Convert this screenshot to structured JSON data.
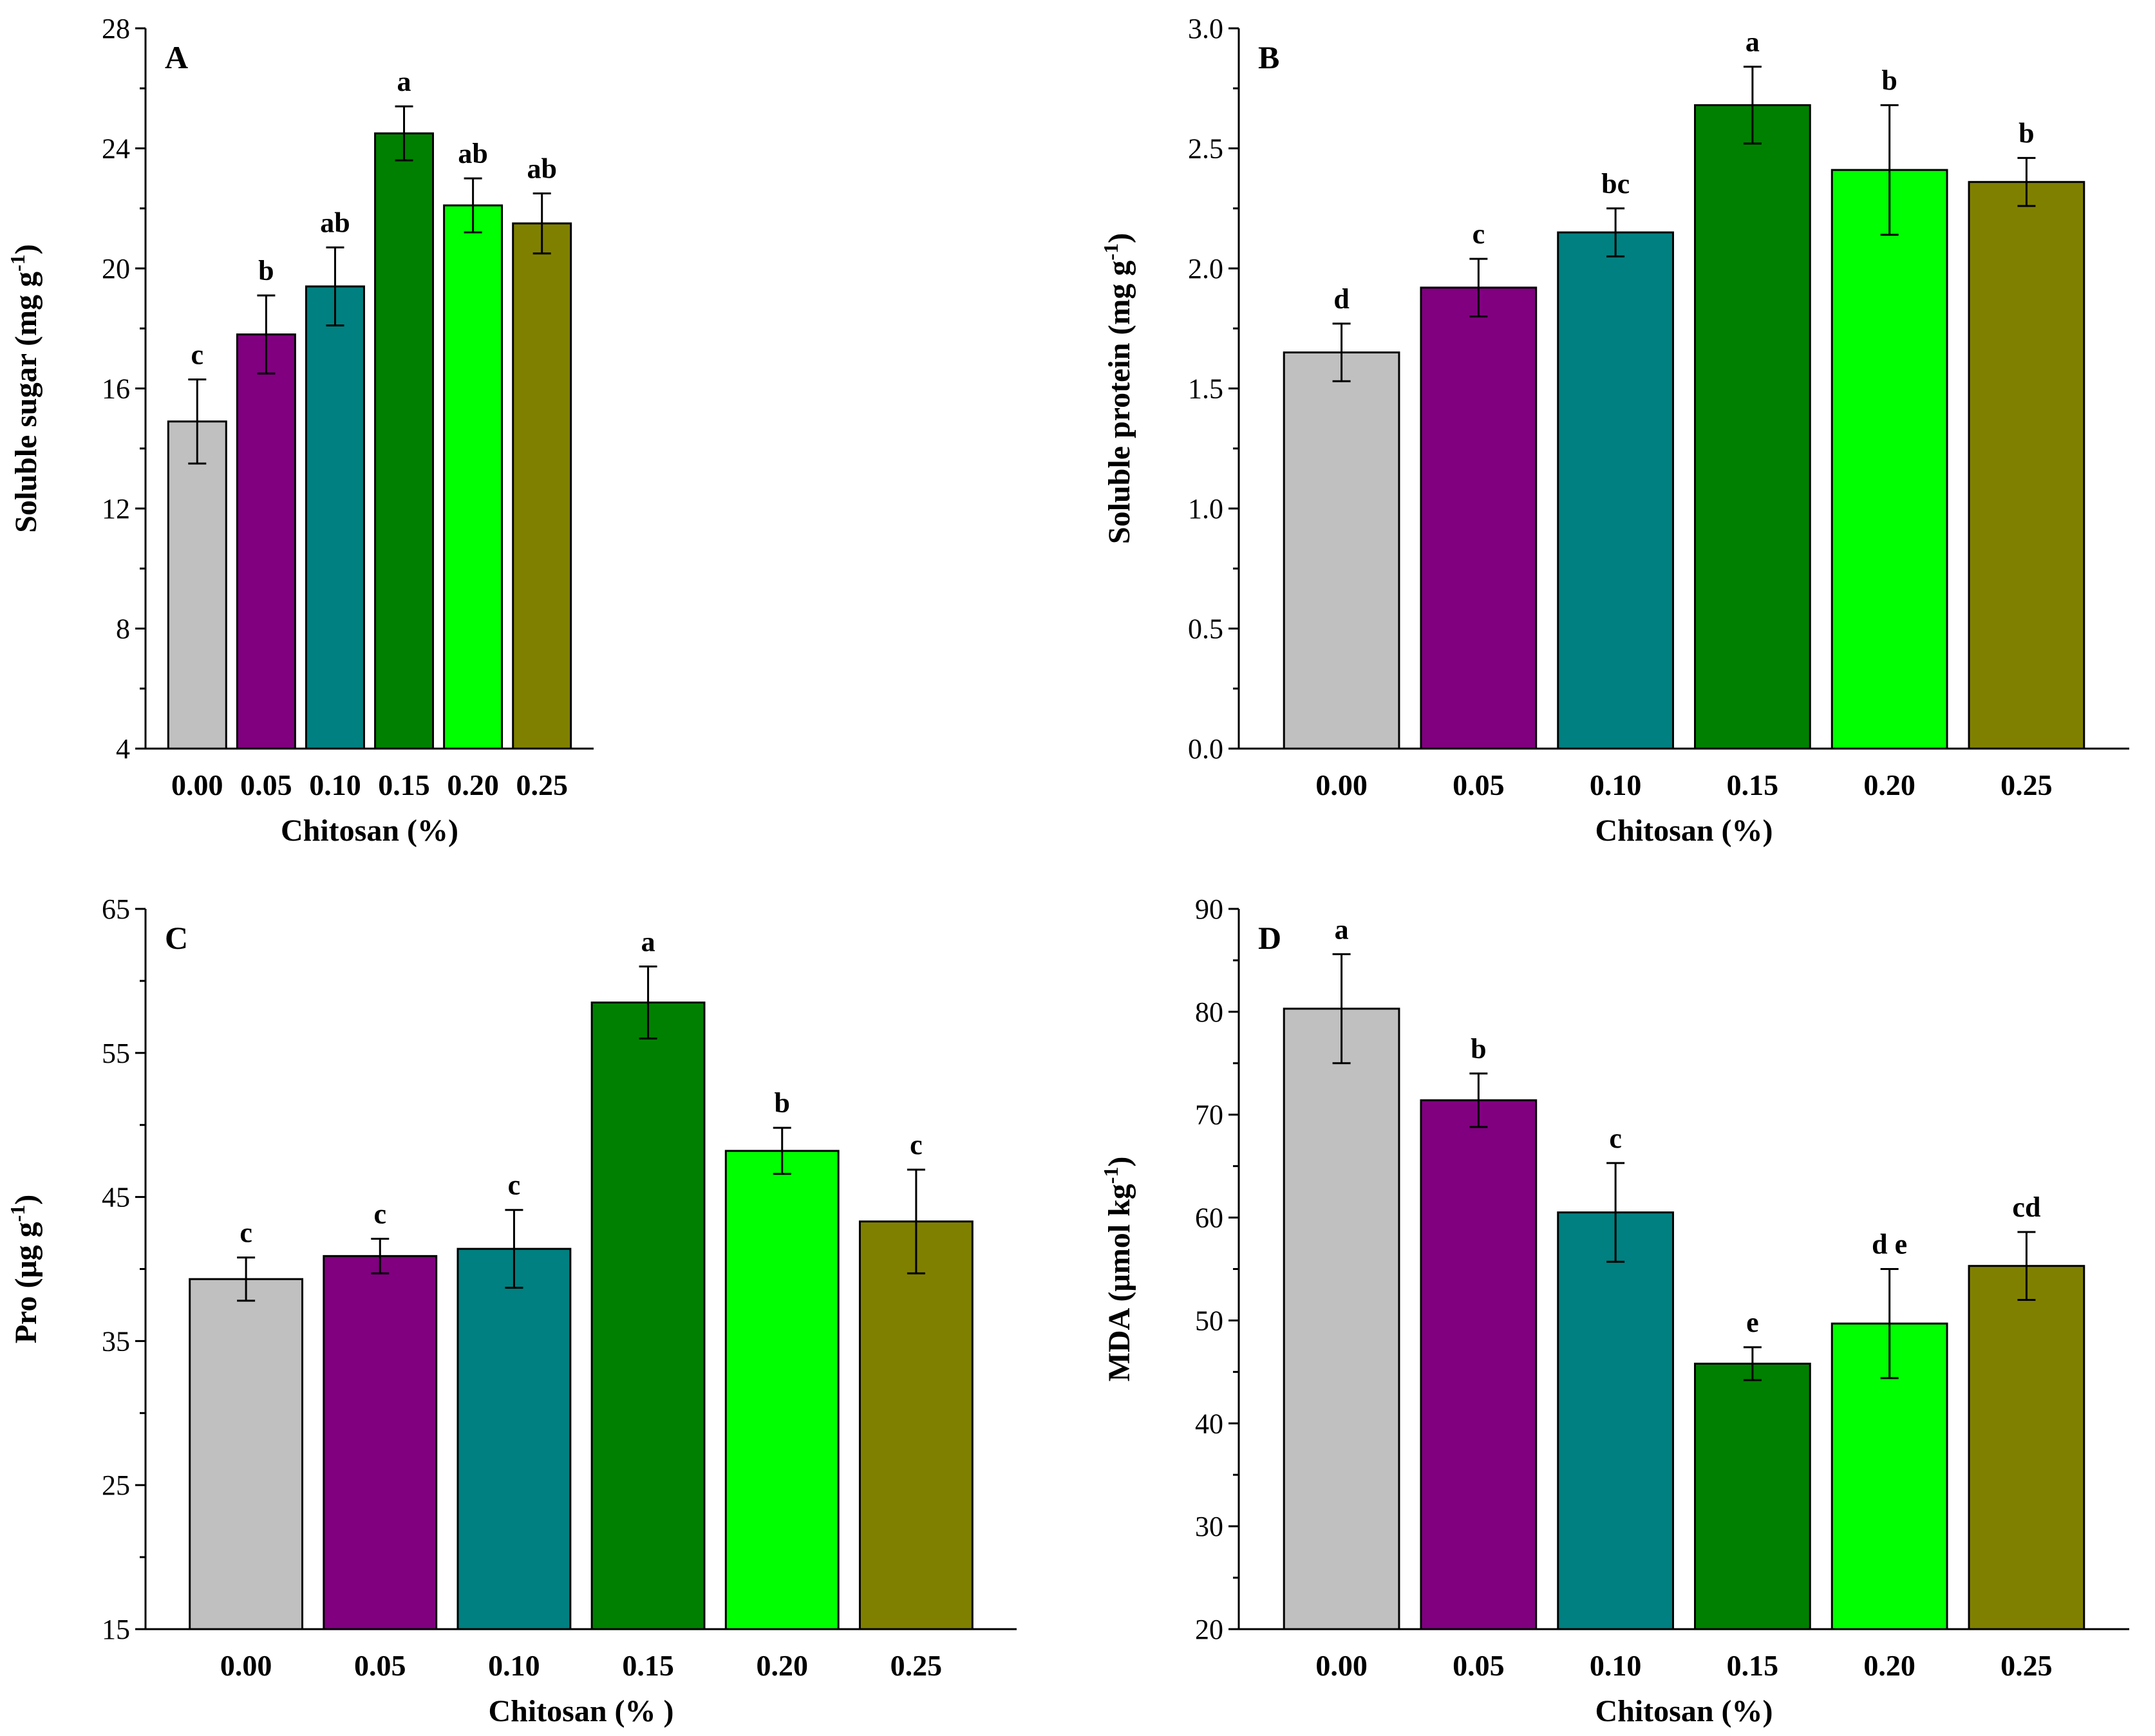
{
  "chart_data": [
    {
      "type": "bar",
      "panel": "A",
      "categories": [
        "0.00",
        "0.05",
        "0.10",
        "0.15",
        "0.20",
        "0.25"
      ],
      "values": [
        14.9,
        17.8,
        19.4,
        24.5,
        22.1,
        21.5
      ],
      "errors": [
        1.4,
        1.3,
        1.3,
        0.9,
        0.9,
        1.0
      ],
      "significance": [
        "c",
        "b",
        "ab",
        "a",
        "ab",
        "ab"
      ],
      "colors": [
        "#c0c0c0",
        "#800080",
        "#008080",
        "#008000",
        "#00ff00",
        "#808000"
      ],
      "xlabel": "Chitosan (%)",
      "ylabel": "Soluble sugar (mg g",
      "ylabel_sup": "-1",
      "ylabel_close": ")",
      "ylim": [
        4,
        28
      ],
      "yticks": [
        4,
        8,
        12,
        16,
        20,
        24,
        28
      ],
      "ytick_labels": [
        "4",
        "8",
        "12",
        "16",
        "20",
        "24",
        "28"
      ]
    },
    {
      "type": "bar",
      "panel": "B",
      "categories": [
        "0.00",
        "0.05",
        "0.10",
        "0.15",
        "0.20",
        "0.25"
      ],
      "values": [
        1.65,
        1.92,
        2.15,
        2.68,
        2.41,
        2.36
      ],
      "errors": [
        0.12,
        0.12,
        0.1,
        0.16,
        0.27,
        0.1
      ],
      "significance": [
        "d",
        "c",
        "bc",
        "a",
        "b",
        "b"
      ],
      "colors": [
        "#c0c0c0",
        "#800080",
        "#008080",
        "#008000",
        "#00ff00",
        "#808000"
      ],
      "xlabel": "Chitosan (%)",
      "ylabel": "Soluble protein (mg g",
      "ylabel_sup": "-1",
      "ylabel_close": ")",
      "ylim": [
        0,
        3
      ],
      "yticks": [
        0,
        0.5,
        1,
        1.5,
        2,
        2.5,
        3
      ],
      "ytick_labels": [
        "0.0",
        "0.5",
        "1.0",
        "1.5",
        "2.0",
        "2.5",
        "3.0"
      ]
    },
    {
      "type": "bar",
      "panel": "C",
      "categories": [
        "0.00",
        "0.05",
        "0.10",
        "0.15",
        "0.20",
        "0.25"
      ],
      "values": [
        39.3,
        40.9,
        41.4,
        58.5,
        48.2,
        43.3
      ],
      "errors": [
        1.5,
        1.2,
        2.7,
        2.5,
        1.6,
        3.6
      ],
      "significance": [
        "c",
        "c",
        "c",
        "a",
        "b",
        "c"
      ],
      "colors": [
        "#c0c0c0",
        "#800080",
        "#008080",
        "#008000",
        "#00ff00",
        "#808000"
      ],
      "xlabel": "Chitosan (% )",
      "ylabel": "Pro (μg g",
      "ylabel_sup": "-1",
      "ylabel_close": ")",
      "ylim": [
        15,
        65
      ],
      "yticks": [
        15,
        25,
        35,
        45,
        55,
        65
      ],
      "ytick_labels": [
        "15",
        "25",
        "35",
        "45",
        "55",
        "65"
      ]
    },
    {
      "type": "bar",
      "panel": "D",
      "categories": [
        "0.00",
        "0.05",
        "0.10",
        "0.15",
        "0.20",
        "0.25"
      ],
      "values": [
        80.3,
        71.4,
        60.5,
        45.8,
        49.7,
        55.3
      ],
      "errors": [
        5.3,
        2.6,
        4.8,
        1.6,
        5.3,
        3.3
      ],
      "significance": [
        "a",
        "b",
        "c",
        "e",
        "d e",
        "cd"
      ],
      "colors": [
        "#c0c0c0",
        "#800080",
        "#008080",
        "#008000",
        "#00ff00",
        "#808000"
      ],
      "xlabel": "Chitosan (%)",
      "ylabel": "MDA (μmol kg",
      "ylabel_sup": "-1",
      "ylabel_close": ")",
      "ylim": [
        20,
        90
      ],
      "yticks": [
        20,
        30,
        40,
        50,
        60,
        70,
        80,
        90
      ],
      "ytick_labels": [
        "20",
        "30",
        "40",
        "50",
        "60",
        "70",
        "80",
        "90"
      ]
    }
  ]
}
